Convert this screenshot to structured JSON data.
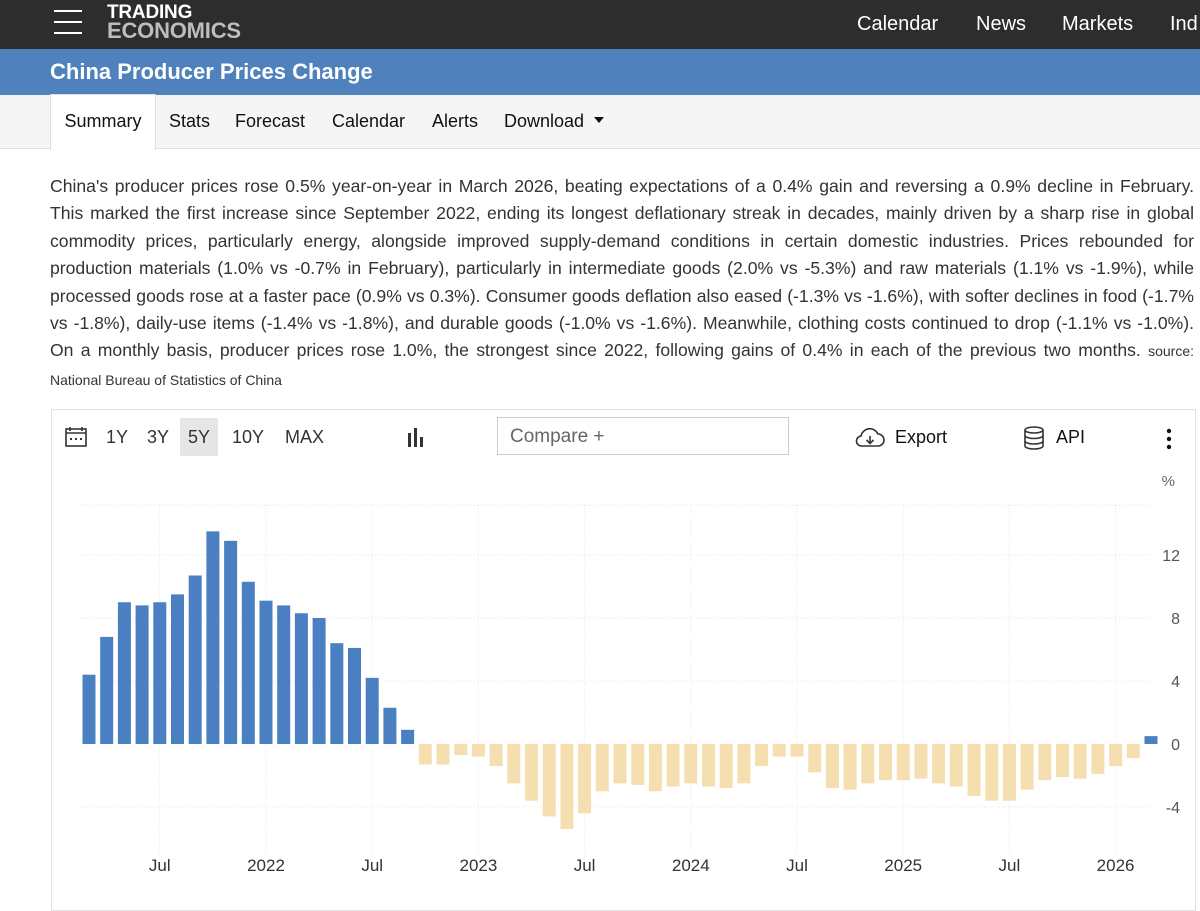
{
  "header": {
    "logo_line1": "TRADING",
    "logo_line2": "ECONOMICS",
    "nav": [
      "Calendar",
      "News",
      "Markets",
      "Ind"
    ]
  },
  "page_title": "China Producer Prices Change",
  "tabs": [
    "Summary",
    "Stats",
    "Forecast",
    "Calendar",
    "Alerts",
    "Download"
  ],
  "description": "China's producer prices rose 0.5% year-on-year in March 2026, beating expectations of a 0.4% gain and reversing a 0.9% decline in February. This marked the first increase since September 2022, ending its longest deflationary streak in decades, mainly driven by a sharp rise in global commodity prices, particularly energy, alongside improved supply-demand conditions in certain domestic industries. Prices rebounded for production materials (1.0% vs -0.7% in February), particularly in intermediate goods (2.0% vs -5.3%) and raw materials (1.1% vs -1.9%), while processed goods rose at a faster pace (0.9% vs 0.3%). Consumer goods deflation also eased (-1.3% vs -1.6%), with softer declines in food (-1.7% vs -1.8%), daily-use items (-1.4% vs -1.8%), and durable goods (-1.0% vs -1.6%). Meanwhile, clothing costs continued to drop (-1.1% vs -1.0%). On a monthly basis, producer prices rose 1.0%, the strongest since 2022, following gains of 0.4% in each of the previous two months.",
  "source": "source: National Bureau of Statistics of China",
  "toolbar": {
    "ranges": [
      "1Y",
      "3Y",
      "5Y",
      "10Y",
      "MAX"
    ],
    "active_range": "5Y",
    "compare_placeholder": "Compare +",
    "export_label": "Export",
    "api_label": "API"
  },
  "colors": {
    "topbar": "#2d2d2d",
    "title_bar": "#4f81bd",
    "positive_bar": "#4a7fc1",
    "negative_bar": "#f5dfb0"
  },
  "chart_data": {
    "type": "bar",
    "title": "China Producer Prices Change",
    "ylabel": "%",
    "ylim": [
      -5.6,
      15
    ],
    "yticks": [
      12,
      8,
      4,
      0,
      -4
    ],
    "xlabels": [
      {
        "label": "Jul",
        "index": 4
      },
      {
        "label": "2022",
        "index": 10
      },
      {
        "label": "Jul",
        "index": 16
      },
      {
        "label": "2023",
        "index": 22
      },
      {
        "label": "Jul",
        "index": 28
      },
      {
        "label": "2024",
        "index": 34
      },
      {
        "label": "Jul",
        "index": 40
      },
      {
        "label": "2025",
        "index": 46
      },
      {
        "label": "Jul",
        "index": 52
      },
      {
        "label": "2026",
        "index": 58
      }
    ],
    "categories": [
      "2021-03",
      "2021-04",
      "2021-05",
      "2021-06",
      "2021-07",
      "2021-08",
      "2021-09",
      "2021-10",
      "2021-11",
      "2021-12",
      "2022-01",
      "2022-02",
      "2022-03",
      "2022-04",
      "2022-05",
      "2022-06",
      "2022-07",
      "2022-08",
      "2022-09",
      "2022-10",
      "2022-11",
      "2022-12",
      "2023-01",
      "2023-02",
      "2023-03",
      "2023-04",
      "2023-05",
      "2023-06",
      "2023-07",
      "2023-08",
      "2023-09",
      "2023-10",
      "2023-11",
      "2023-12",
      "2024-01",
      "2024-02",
      "2024-03",
      "2024-04",
      "2024-05",
      "2024-06",
      "2024-07",
      "2024-08",
      "2024-09",
      "2024-10",
      "2024-11",
      "2024-12",
      "2025-01",
      "2025-02",
      "2025-03",
      "2025-04",
      "2025-05",
      "2025-06",
      "2025-07",
      "2025-08",
      "2025-09",
      "2025-10",
      "2025-11",
      "2025-12",
      "2026-01",
      "2026-02",
      "2026-03"
    ],
    "values": [
      4.4,
      6.8,
      9.0,
      8.8,
      9.0,
      9.5,
      10.7,
      13.5,
      12.9,
      10.3,
      9.1,
      8.8,
      8.3,
      8.0,
      6.4,
      6.1,
      4.2,
      2.3,
      0.9,
      -1.3,
      -1.3,
      -0.7,
      -0.8,
      -1.4,
      -2.5,
      -3.6,
      -4.6,
      -5.4,
      -4.4,
      -3.0,
      -2.5,
      -2.6,
      -3.0,
      -2.7,
      -2.5,
      -2.7,
      -2.8,
      -2.5,
      -1.4,
      -0.8,
      -0.8,
      -1.8,
      -2.8,
      -2.9,
      -2.5,
      -2.3,
      -2.3,
      -2.2,
      -2.5,
      -2.7,
      -3.3,
      -3.6,
      -3.6,
      -2.9,
      -2.3,
      -2.1,
      -2.2,
      -1.9,
      -1.4,
      -0.9,
      0.5
    ]
  }
}
